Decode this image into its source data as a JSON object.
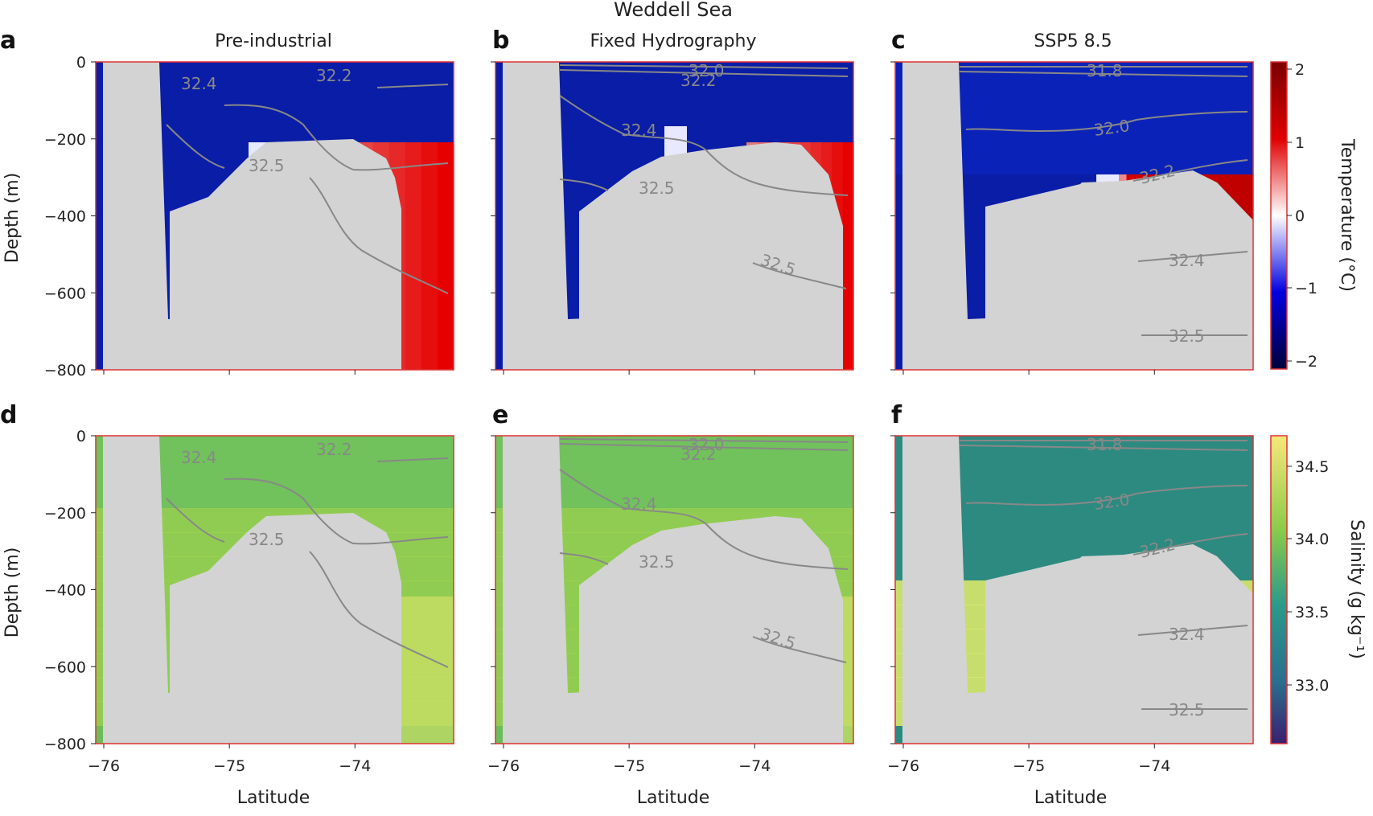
{
  "figure": {
    "suptitle": "Weddell Sea",
    "panel_letters": [
      "a",
      "b",
      "c",
      "d",
      "e",
      "f"
    ],
    "column_titles": [
      "Pre-industrial",
      "Fixed Hydrography",
      "SSP5 8.5"
    ],
    "row_ylabel": "Depth (m)",
    "xlabel": "Latitude",
    "x_ticks": [
      "−76",
      "−75",
      "−74"
    ],
    "y_ticks": [
      "0",
      "−200",
      "−400",
      "−600",
      "−800"
    ],
    "colorbars": [
      {
        "label": "Temperature (°C)",
        "ticks": [
          "2",
          "1",
          "0",
          "−1",
          "−2"
        ],
        "colors": [
          "#7a0000",
          "#e00000",
          "#ffffff",
          "#0000e0",
          "#00003a"
        ],
        "range": [
          -2.1,
          2.1
        ]
      },
      {
        "label": "Salinity (g kg⁻¹)",
        "ticks": [
          "34.5",
          "34.0",
          "33.5",
          "33.0"
        ],
        "colors": [
          "#f6e77a",
          "#8ccc4a",
          "#2a9a8a",
          "#2b6e8e",
          "#3a1f6f"
        ],
        "range": [
          32.6,
          34.7
        ]
      }
    ]
  },
  "chart_data": [
    {
      "panel": "a",
      "type": "heatmap",
      "title": "Pre-industrial",
      "field": "Temperature (°C)",
      "xlim": [
        -76.0,
        -73.15
      ],
      "ylim": [
        -800,
        0
      ],
      "contour_labels": [
        "32.4",
        "32.2",
        "32.5"
      ]
    },
    {
      "panel": "b",
      "type": "heatmap",
      "title": "Fixed Hydrography",
      "field": "Temperature (°C)",
      "xlim": [
        -76.0,
        -73.15
      ],
      "ylim": [
        -800,
        0
      ],
      "contour_labels": [
        "32.0",
        "32.2",
        "32.4",
        "32.5",
        "32.5"
      ]
    },
    {
      "panel": "c",
      "type": "heatmap",
      "title": "SSP5 8.5",
      "field": "Temperature (°C)",
      "xlim": [
        -76.0,
        -73.15
      ],
      "ylim": [
        -800,
        0
      ],
      "contour_labels": [
        "31.8",
        "32.0",
        "32.2",
        "32.4",
        "32.5"
      ]
    },
    {
      "panel": "d",
      "type": "heatmap",
      "title": "",
      "field": "Salinity (g kg⁻¹)",
      "xlim": [
        -76.0,
        -73.15
      ],
      "ylim": [
        -800,
        0
      ],
      "contour_labels": [
        "32.4",
        "32.2",
        "32.5"
      ]
    },
    {
      "panel": "e",
      "type": "heatmap",
      "title": "",
      "field": "Salinity (g kg⁻¹)",
      "xlim": [
        -76.0,
        -73.15
      ],
      "ylim": [
        -800,
        0
      ],
      "contour_labels": [
        "32.0",
        "32.2",
        "32.4",
        "32.5",
        "32.5"
      ]
    },
    {
      "panel": "f",
      "type": "heatmap",
      "title": "",
      "field": "Salinity (g kg⁻¹)",
      "xlim": [
        -76.0,
        -73.15
      ],
      "ylim": [
        -800,
        0
      ],
      "contour_labels": [
        "31.8",
        "32.0",
        "32.2",
        "32.4",
        "32.5"
      ]
    }
  ]
}
